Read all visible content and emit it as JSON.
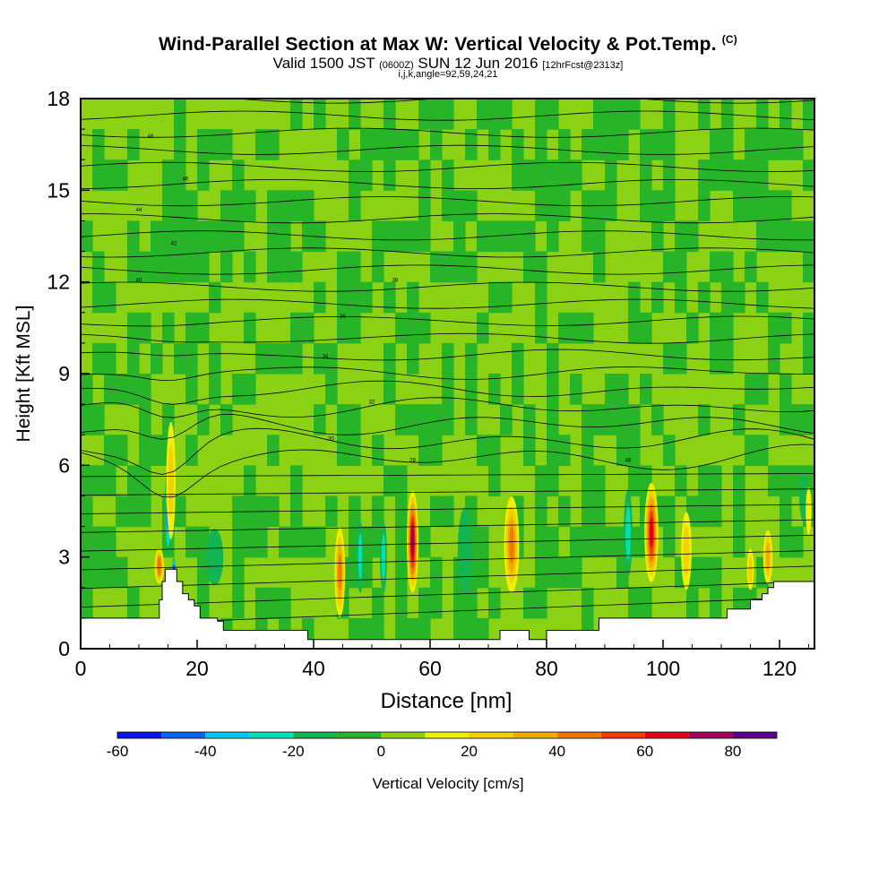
{
  "header": {
    "title": "Wind-Parallel Section at Max W: Vertical Velocity & Pot.Temp.",
    "copyright": "(C)",
    "valid_prefix": "Valid 1500 JST",
    "valid_utc": "(0600Z)",
    "valid_date": "SUN 12 Jun 2016",
    "forecast": "[12hrFcst@2313z]",
    "indices": "i,j,k,angle=92,59,24,21"
  },
  "colorbar": {
    "label": "Vertical Velocity [cm/s]",
    "tick_labels": [
      "-60",
      "-40",
      "-20",
      "0",
      "20",
      "40",
      "60",
      "80"
    ],
    "bins": [
      -60,
      -50,
      -40,
      -30,
      -20,
      -10,
      0,
      10,
      20,
      30,
      40,
      50,
      60,
      70,
      80,
      90
    ],
    "colors": [
      "#0a14f0",
      "#0a64f0",
      "#00c8f0",
      "#00e1b4",
      "#14b450",
      "#28b428",
      "#8cd214",
      "#f0f000",
      "#f0d200",
      "#f0aa00",
      "#f07800",
      "#f03c00",
      "#e10014",
      "#a0005a",
      "#5a008c"
    ]
  },
  "chart_data": {
    "type": "heatmap",
    "title": "Wind-Parallel Section at Max W: Vertical Velocity & Pot.Temp.",
    "xlabel": "Distance [nm]",
    "ylabel": "Height [Kft MSL]",
    "xlim": [
      0,
      126
    ],
    "ylim": [
      0,
      18
    ],
    "xticks": [
      0,
      20,
      40,
      60,
      80,
      100,
      120
    ],
    "yticks": [
      0,
      3,
      6,
      9,
      12,
      15,
      18
    ],
    "background_w": 5,
    "updrafts": [
      {
        "x": 15.5,
        "y": 5.5,
        "width": 1.6,
        "height": 3.5,
        "w": 22
      },
      {
        "x": 13.5,
        "y": 2.7,
        "width": 1.6,
        "height": 0.8,
        "w": 45
      },
      {
        "x": 44.5,
        "y": 2.5,
        "width": 1.8,
        "height": 2.6,
        "w": 45
      },
      {
        "x": 57,
        "y": 3.5,
        "width": 2.0,
        "height": 3.0,
        "w": 78
      },
      {
        "x": 74,
        "y": 3.4,
        "width": 2.6,
        "height": 2.8,
        "w": 42
      },
      {
        "x": 98,
        "y": 3.8,
        "width": 2.4,
        "height": 2.9,
        "w": 68
      },
      {
        "x": 104,
        "y": 3.2,
        "width": 1.8,
        "height": 2.2,
        "w": 22
      },
      {
        "x": 118,
        "y": 3.0,
        "width": 1.6,
        "height": 1.4,
        "w": 30
      },
      {
        "x": 115,
        "y": 2.6,
        "width": 1.2,
        "height": 1.0,
        "w": 28
      },
      {
        "x": 125,
        "y": 4.5,
        "width": 1.0,
        "height": 1.2,
        "w": 15
      }
    ],
    "downdrafts": [
      {
        "x": 15,
        "y": 4.5,
        "width": 1.1,
        "height": 2.6,
        "w": -40
      },
      {
        "x": 16,
        "y": 2.4,
        "width": 0.7,
        "height": 0.8,
        "w": -55
      },
      {
        "x": 48,
        "y": 3.0,
        "width": 1.2,
        "height": 2.0,
        "w": -28
      },
      {
        "x": 52,
        "y": 3.0,
        "width": 1.2,
        "height": 2.0,
        "w": -25
      },
      {
        "x": 66,
        "y": 3.2,
        "width": 2.5,
        "height": 2.5,
        "w": -15
      },
      {
        "x": 94,
        "y": 3.8,
        "width": 1.5,
        "height": 2.5,
        "w": -28
      },
      {
        "x": 23,
        "y": 3.0,
        "width": 3.0,
        "height": 1.5,
        "w": -18
      },
      {
        "x": 124,
        "y": 5.0,
        "width": 1.2,
        "height": 1.2,
        "w": -18
      }
    ],
    "terrain": [
      [
        0,
        1.0
      ],
      [
        7,
        1.0
      ],
      [
        13,
        1.0
      ],
      [
        13.5,
        1.6
      ],
      [
        14,
        2.2
      ],
      [
        14.5,
        2.6
      ],
      [
        16,
        2.6
      ],
      [
        16.5,
        2.2
      ],
      [
        17.5,
        1.8
      ],
      [
        18.5,
        1.6
      ],
      [
        19.5,
        1.4
      ],
      [
        20.5,
        1.0
      ],
      [
        22,
        1.0
      ],
      [
        23.5,
        0.9
      ],
      [
        24.5,
        0.6
      ],
      [
        38,
        0.6
      ],
      [
        39,
        0.3
      ],
      [
        71,
        0.3
      ],
      [
        72,
        0.6
      ],
      [
        76,
        0.6
      ],
      [
        77,
        0.3
      ],
      [
        79,
        0.3
      ],
      [
        80,
        0.6
      ],
      [
        88,
        0.6
      ],
      [
        89,
        1.0
      ],
      [
        110,
        1.0
      ],
      [
        111,
        1.3
      ],
      [
        114,
        1.3
      ],
      [
        115,
        1.6
      ],
      [
        117,
        1.8
      ],
      [
        118,
        2.0
      ],
      [
        119,
        2.2
      ],
      [
        126,
        2.2
      ]
    ],
    "isentropes": {
      "levels_near_top": [
        35.5,
        36.0,
        36.5,
        37.0,
        37.5,
        38.0,
        38.5,
        39.0,
        39.5,
        40.0,
        40.5,
        41.0,
        41.5,
        42.0,
        42.5,
        43.0,
        43.5,
        44.0,
        44.5,
        45.0,
        45.5,
        46.0,
        46.5,
        47.0
      ],
      "contour_labels": [
        "48",
        "46",
        "44",
        "42",
        "40",
        "38",
        "36",
        "34",
        "32",
        "30",
        "28"
      ]
    }
  }
}
